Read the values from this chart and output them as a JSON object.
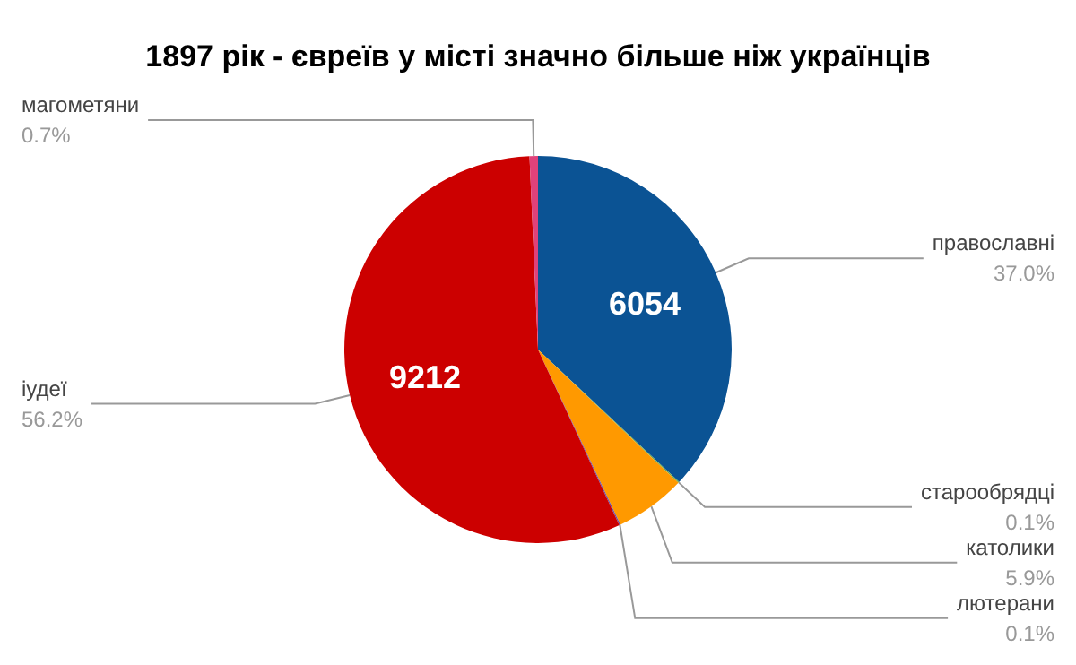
{
  "chart_data": {
    "type": "pie",
    "title": "1897 рік - євреїв у місті значно більше ніж українців",
    "categories": [
      "православні",
      "старообрядці",
      "католики",
      "лютерани",
      "іудеї",
      "магометяни"
    ],
    "values": [
      37.0,
      0.1,
      5.9,
      0.1,
      56.2,
      0.7
    ],
    "colors": [
      "#0b5394",
      "#6aa84f",
      "#ff9900",
      "#674ea7",
      "#cc0000",
      "#e0427a"
    ],
    "value_labels": [
      "37.0%",
      "0.1%",
      "5.9%",
      "0.1%",
      "56.2%",
      "0.7%"
    ],
    "annotations": [
      {
        "text": "6054",
        "x": "православні"
      },
      {
        "text": "9212",
        "x": "іудеї"
      }
    ],
    "legend": false
  }
}
